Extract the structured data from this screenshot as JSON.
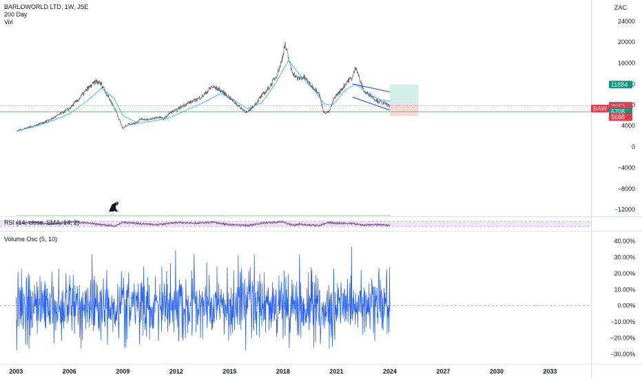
{
  "header": {
    "symbol_line": "BARLOWORLD LTD, 1W, JSE",
    "ma_label": "200 Day",
    "vol_label": "Vol",
    "currency": "ZAC"
  },
  "rsi_label": "RSI (14, close, SMA, 14, 2)",
  "vosc_label": "Volume Osc (5, 10)",
  "price_badge_symbol": "BAW",
  "chart_data": [
    {
      "type": "line",
      "pane": "price",
      "title": "",
      "y_ticks": [
        "24000",
        "20000",
        "16000",
        "12000",
        "8000",
        "4000",
        "0",
        "−4000",
        "−8000",
        "−12000"
      ],
      "y_tick_values": [
        24000,
        20000,
        16000,
        12000,
        8000,
        4000,
        0,
        -4000,
        -8000,
        -12000
      ],
      "ylim": [
        -13300,
        27000
      ],
      "x_ticks": [
        "2003",
        "2006",
        "2009",
        "2012",
        "2015",
        "2018",
        "2021",
        "2024",
        "2027",
        "2030",
        "2033"
      ],
      "x_tick_years": [
        2003,
        2006,
        2009,
        2012,
        2015,
        2018,
        2021,
        2024,
        2027,
        2030,
        2033
      ],
      "xlim": [
        2002.1,
        2035.3
      ],
      "series": [
        {
          "x": [
            2003.0,
            2003.5,
            2004.0,
            2004.5,
            2005.0,
            2005.5,
            2006.0,
            2006.5,
            2007.0,
            2007.5,
            2007.8,
            2008.2,
            2008.6,
            2009.0,
            2009.3,
            2009.7,
            2010.0,
            2010.5,
            2011.0,
            2011.3,
            2011.7,
            2012.0,
            2012.5,
            2013.0,
            2013.5,
            2014.0,
            2014.4,
            2014.8,
            2015.2,
            2015.6,
            2016.0,
            2016.4,
            2016.8,
            2017.2,
            2017.6,
            2017.9,
            2018.1,
            2018.5,
            2018.8,
            2019.2,
            2019.6,
            2020.0,
            2020.3,
            2020.6,
            2020.9,
            2021.2,
            2021.6,
            2021.9,
            2022.1,
            2022.3,
            2022.6,
            2022.9,
            2023.2,
            2023.5,
            2023.8,
            2024.0
          ],
          "values": [
            3000,
            3500,
            4000,
            4600,
            5300,
            6300,
            7300,
            9000,
            11000,
            12500,
            12000,
            9500,
            7000,
            3500,
            4300,
            4500,
            5300,
            5200,
            5700,
            5300,
            6600,
            7000,
            8100,
            8800,
            9700,
            11500,
            11000,
            10000,
            8800,
            7500,
            6500,
            8000,
            9700,
            11200,
            13400,
            16000,
            19500,
            14500,
            13000,
            13300,
            11600,
            10500,
            6500,
            6700,
            9500,
            10500,
            12500,
            13200,
            15500,
            12800,
            10300,
            10000,
            9000,
            8500,
            8200,
            7662
          ]
        },
        {
          "x": [
            2003.0,
            2004.0,
            2005.0,
            2006.0,
            2007.0,
            2007.8,
            2008.5,
            2009.0,
            2009.8,
            2010.5,
            2011.5,
            2012.5,
            2013.5,
            2014.5,
            2015.2,
            2016.0,
            2016.8,
            2017.5,
            2018.3,
            2019.0,
            2019.8,
            2020.3,
            2020.8,
            2021.5,
            2022.1,
            2022.8,
            2023.5,
            2024.0
          ],
          "values": [
            3000,
            3800,
            4900,
            6300,
            8800,
            11200,
            9300,
            6000,
            4500,
            4800,
            5400,
            6900,
            8400,
            10200,
            9000,
            7300,
            8400,
            11700,
            16500,
            13500,
            10600,
            8200,
            8000,
            10900,
            12000,
            10000,
            9000,
            8700
          ]
        }
      ],
      "volume_histogram": {
        "baseline": -12900,
        "typical_top": -11700,
        "spikes": [
          {
            "x": 2005.0,
            "value": -8300
          },
          {
            "x": 2010.8,
            "value": -2000
          },
          {
            "x": 2013.9,
            "value": -8900
          },
          {
            "x": 2016.6,
            "value": -1000
          },
          {
            "x": 2017.2,
            "value": -8600
          },
          {
            "x": 2018.6,
            "value": -8400
          },
          {
            "x": 2020.2,
            "value": -6600
          }
        ]
      },
      "horizontal_lines": [
        {
          "value": 6708,
          "color": "#4caf50"
        },
        {
          "value": 7867,
          "color": "#ef5350"
        }
      ],
      "channel": {
        "upper": {
          "x": [
            2021.9,
            2024.0
          ],
          "values": [
            12000,
            10500
          ]
        },
        "lower": {
          "x": [
            2021.9,
            2024.0
          ],
          "values": [
            9500,
            7000
          ]
        }
      },
      "position_zones": {
        "x": [
          2024.0,
          2025.6
        ],
        "entry": 8200,
        "target": 11884,
        "stop": 5900
      },
      "price_tags": [
        {
          "label": "11884",
          "value": 11884,
          "color": "#089981"
        },
        {
          "label": "7867",
          "value": 7867,
          "color": "#787b86"
        },
        {
          "label": "7662",
          "value": 7662,
          "color": "#f23645"
        },
        {
          "label": "3d 22h",
          "value": 7000,
          "color": "#f23645"
        },
        {
          "label": "6708",
          "value": 6708,
          "color": "#089981"
        },
        {
          "label": "5688",
          "value": 5688,
          "color": "#f23645"
        }
      ],
      "colors": {
        "price": "#5d606b",
        "ma": "#29b6f6",
        "volume": "#66bb6a",
        "channel": "#2962ff",
        "target_zone": "#d3efe9",
        "stop_zone": "#fbd7da"
      }
    },
    {
      "type": "line",
      "pane": "rsi",
      "title": "",
      "ylim": [
        0,
        100
      ],
      "band": [
        30,
        70
      ],
      "x": [
        2003.0,
        2004.0,
        2005.0,
        2006.0,
        2007.0,
        2008.0,
        2008.5,
        2009.0,
        2010.0,
        2011.0,
        2012.0,
        2013.0,
        2014.0,
        2015.0,
        2016.0,
        2017.0,
        2018.0,
        2018.5,
        2019.0,
        2020.0,
        2020.5,
        2021.0,
        2022.0,
        2022.5,
        2023.0,
        2024.0
      ],
      "values": [
        55,
        62,
        48,
        65,
        58,
        42,
        35,
        60,
        52,
        45,
        60,
        55,
        62,
        45,
        40,
        58,
        66,
        40,
        48,
        38,
        60,
        55,
        52,
        40,
        45,
        42
      ],
      "colors": {
        "rsi": "#7e57c2",
        "signal": "#ffa726",
        "band": "#ede7f6"
      }
    },
    {
      "type": "line",
      "pane": "volume_osc",
      "title": "",
      "y_ticks": [
        "40.00%",
        "30.00%",
        "20.00%",
        "10.00%",
        "0.00%",
        "−10.00%",
        "−20.00%",
        "−30.00%"
      ],
      "y_tick_values": [
        40,
        30,
        20,
        10,
        0,
        -10,
        -20,
        -30
      ],
      "ylim": [
        -36,
        46
      ],
      "x_range": [
        2003.0,
        2024.0
      ],
      "range_max": 37,
      "range_min": -29,
      "color": "#2962ff"
    }
  ]
}
